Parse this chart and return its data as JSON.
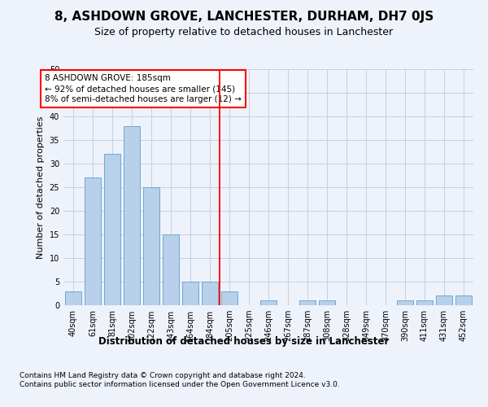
{
  "title": "8, ASHDOWN GROVE, LANCHESTER, DURHAM, DH7 0JS",
  "subtitle": "Size of property relative to detached houses in Lanchester",
  "xlabel": "Distribution of detached houses by size in Lanchester",
  "ylabel": "Number of detached properties",
  "bar_color": "#b8d0ea",
  "bar_edge_color": "#6aaad4",
  "vline_color": "red",
  "vline_x_index": 7.5,
  "annotation_text": "8 ASHDOWN GROVE: 185sqm\n← 92% of detached houses are smaller (145)\n8% of semi-detached houses are larger (12) →",
  "annotation_box_edgecolor": "red",
  "annotation_fontsize": 7.5,
  "categories": [
    "40sqm",
    "61sqm",
    "81sqm",
    "102sqm",
    "122sqm",
    "143sqm",
    "164sqm",
    "184sqm",
    "205sqm",
    "225sqm",
    "246sqm",
    "267sqm",
    "287sqm",
    "308sqm",
    "328sqm",
    "349sqm",
    "370sqm",
    "390sqm",
    "411sqm",
    "431sqm",
    "452sqm"
  ],
  "values": [
    3,
    27,
    32,
    38,
    25,
    15,
    5,
    5,
    3,
    0,
    1,
    0,
    1,
    1,
    0,
    0,
    0,
    1,
    1,
    2,
    2
  ],
  "ylim": [
    0,
    50
  ],
  "yticks": [
    0,
    5,
    10,
    15,
    20,
    25,
    30,
    35,
    40,
    45,
    50
  ],
  "title_fontsize": 11,
  "subtitle_fontsize": 9,
  "xlabel_fontsize": 8.5,
  "ylabel_fontsize": 8,
  "tick_fontsize": 7,
  "footer_text": "Contains HM Land Registry data © Crown copyright and database right 2024.\nContains public sector information licensed under the Open Government Licence v3.0.",
  "footer_fontsize": 6.5,
  "bg_color": "#eef2fb",
  "grid_color": "#c5cfe0"
}
